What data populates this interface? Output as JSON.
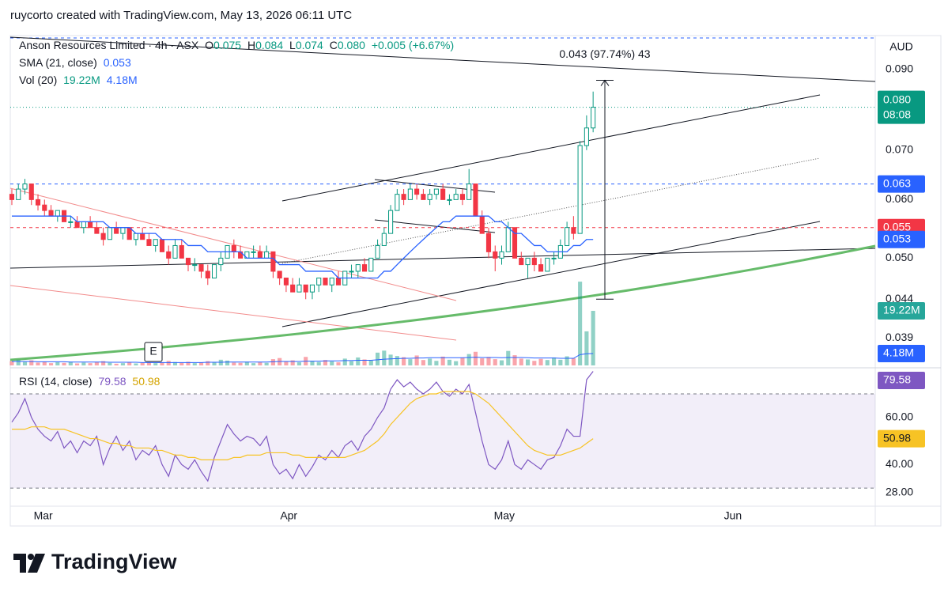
{
  "header": {
    "credit": "ruycorto created with TradingView.com, May 13, 2026 06:11 UTC"
  },
  "footer": {
    "brand": "TradingView"
  },
  "chart_data": {
    "type": "candlestick",
    "title": "Anson Resources Limited · 4h · ASX",
    "legend": [
      {
        "key": "O",
        "value": "0.075"
      },
      {
        "key": "H",
        "value": "0.084"
      },
      {
        "key": "L",
        "value": "0.074"
      },
      {
        "key": "C",
        "value": "0.080"
      }
    ],
    "change": "+0.005 (+6.67%)",
    "currency": "AUD",
    "up_color": "#089981",
    "down_color": "#f23645",
    "log_scale": true,
    "xlim": [
      -0.24,
      132.2
    ],
    "xticks": [
      {
        "value": 4.8,
        "label": "Mar"
      },
      {
        "value": 42.4,
        "label": "Apr"
      },
      {
        "value": 75.4,
        "label": "May"
      },
      {
        "value": 110.4,
        "label": "Jun"
      }
    ],
    "ylim": [
      0.0358,
      0.1
    ],
    "yticks": [
      {
        "value": 0.09,
        "label": "0.090"
      },
      {
        "value": 0.07,
        "label": "0.070"
      },
      {
        "value": 0.06,
        "label": "0.060"
      },
      {
        "value": 0.05,
        "label": "0.050"
      },
      {
        "value": 0.044,
        "label": "0.044"
      },
      {
        "value": 0.039,
        "label": "0.039"
      }
    ],
    "price_tags": [
      {
        "value": 0.08,
        "label": "0.080",
        "time": "08:08",
        "color": "#089981"
      },
      {
        "value": 0.063,
        "label": "0.063",
        "color": "#2962ff"
      },
      {
        "value": 0.055,
        "label": "0.055",
        "color": "#f23645"
      }
    ],
    "measure": {
      "from": 0.044,
      "to": 0.087,
      "label": "0.043 (97.74%) 43"
    },
    "earnings_marker": "E",
    "open": [
      0.061,
      0.06,
      0.062,
      0.063,
      0.06,
      0.059,
      0.058,
      0.057,
      0.058,
      0.056,
      0.056,
      0.055,
      0.056,
      0.055,
      0.054,
      0.053,
      0.055,
      0.054,
      0.055,
      0.053,
      0.054,
      0.053,
      0.052,
      0.053,
      0.051,
      0.05,
      0.052,
      0.05,
      0.049,
      0.049,
      0.048,
      0.047,
      0.049,
      0.05,
      0.052,
      0.051,
      0.05,
      0.051,
      0.051,
      0.05,
      0.051,
      0.048,
      0.047,
      0.046,
      0.045,
      0.046,
      0.045,
      0.046,
      0.047,
      0.046,
      0.047,
      0.046,
      0.048,
      0.048,
      0.049,
      0.048,
      0.05,
      0.052,
      0.054,
      0.058,
      0.061,
      0.06,
      0.062,
      0.061,
      0.06,
      0.061,
      0.062,
      0.06,
      0.06,
      0.061,
      0.06,
      0.063,
      0.057,
      0.054,
      0.051,
      0.05,
      0.051,
      0.055,
      0.05,
      0.049,
      0.05,
      0.049,
      0.048,
      0.05,
      0.05,
      0.052,
      0.055,
      0.054,
      0.071,
      0.075
    ],
    "high": [
      0.062,
      0.063,
      0.064,
      0.063,
      0.061,
      0.06,
      0.059,
      0.058,
      0.058,
      0.057,
      0.057,
      0.056,
      0.057,
      0.056,
      0.055,
      0.055,
      0.056,
      0.055,
      0.055,
      0.054,
      0.055,
      0.054,
      0.053,
      0.053,
      0.052,
      0.053,
      0.053,
      0.05,
      0.05,
      0.049,
      0.049,
      0.049,
      0.051,
      0.052,
      0.053,
      0.052,
      0.051,
      0.052,
      0.052,
      0.052,
      0.051,
      0.048,
      0.047,
      0.047,
      0.047,
      0.046,
      0.046,
      0.047,
      0.047,
      0.047,
      0.048,
      0.048,
      0.049,
      0.049,
      0.05,
      0.05,
      0.053,
      0.055,
      0.059,
      0.062,
      0.062,
      0.063,
      0.063,
      0.062,
      0.062,
      0.062,
      0.063,
      0.061,
      0.062,
      0.062,
      0.066,
      0.063,
      0.058,
      0.055,
      0.052,
      0.052,
      0.056,
      0.055,
      0.051,
      0.05,
      0.051,
      0.05,
      0.05,
      0.051,
      0.053,
      0.056,
      0.057,
      0.072,
      0.078,
      0.084
    ],
    "low": [
      0.059,
      0.06,
      0.061,
      0.059,
      0.058,
      0.057,
      0.057,
      0.056,
      0.056,
      0.055,
      0.055,
      0.054,
      0.055,
      0.054,
      0.052,
      0.053,
      0.054,
      0.053,
      0.053,
      0.052,
      0.053,
      0.052,
      0.051,
      0.051,
      0.049,
      0.05,
      0.05,
      0.048,
      0.048,
      0.047,
      0.046,
      0.047,
      0.048,
      0.05,
      0.05,
      0.05,
      0.05,
      0.05,
      0.05,
      0.05,
      0.047,
      0.046,
      0.045,
      0.045,
      0.045,
      0.044,
      0.044,
      0.045,
      0.046,
      0.045,
      0.046,
      0.046,
      0.047,
      0.047,
      0.048,
      0.048,
      0.05,
      0.052,
      0.054,
      0.058,
      0.059,
      0.06,
      0.06,
      0.06,
      0.059,
      0.06,
      0.06,
      0.059,
      0.06,
      0.059,
      0.06,
      0.057,
      0.054,
      0.05,
      0.048,
      0.049,
      0.051,
      0.05,
      0.049,
      0.047,
      0.048,
      0.048,
      0.048,
      0.049,
      0.05,
      0.052,
      0.053,
      0.054,
      0.07,
      0.074
    ],
    "close": [
      0.06,
      0.062,
      0.063,
      0.06,
      0.059,
      0.058,
      0.057,
      0.058,
      0.056,
      0.056,
      0.055,
      0.056,
      0.055,
      0.054,
      0.053,
      0.055,
      0.054,
      0.055,
      0.053,
      0.054,
      0.053,
      0.052,
      0.053,
      0.051,
      0.05,
      0.052,
      0.05,
      0.049,
      0.049,
      0.048,
      0.047,
      0.049,
      0.05,
      0.052,
      0.051,
      0.05,
      0.051,
      0.051,
      0.05,
      0.051,
      0.048,
      0.047,
      0.046,
      0.045,
      0.046,
      0.045,
      0.046,
      0.047,
      0.046,
      0.047,
      0.046,
      0.048,
      0.048,
      0.049,
      0.048,
      0.05,
      0.052,
      0.054,
      0.058,
      0.061,
      0.06,
      0.062,
      0.061,
      0.06,
      0.061,
      0.062,
      0.06,
      0.06,
      0.061,
      0.06,
      0.063,
      0.057,
      0.054,
      0.051,
      0.05,
      0.051,
      0.055,
      0.05,
      0.049,
      0.05,
      0.049,
      0.048,
      0.05,
      0.05,
      0.052,
      0.055,
      0.054,
      0.071,
      0.075,
      0.08
    ],
    "sma": {
      "name": "SMA (21, close)",
      "legend_value": "0.053",
      "color": "#2962ff",
      "values": [
        0.057,
        0.057,
        0.057,
        0.057,
        0.057,
        0.057,
        0.057,
        0.057,
        0.057,
        0.057,
        0.056,
        0.056,
        0.056,
        0.056,
        0.056,
        0.055,
        0.055,
        0.055,
        0.055,
        0.054,
        0.054,
        0.054,
        0.054,
        0.053,
        0.053,
        0.053,
        0.053,
        0.052,
        0.052,
        0.052,
        0.051,
        0.051,
        0.051,
        0.051,
        0.051,
        0.051,
        0.05,
        0.05,
        0.05,
        0.05,
        0.05,
        0.049,
        0.049,
        0.049,
        0.049,
        0.048,
        0.048,
        0.048,
        0.048,
        0.048,
        0.047,
        0.047,
        0.047,
        0.047,
        0.047,
        0.047,
        0.047,
        0.048,
        0.048,
        0.049,
        0.05,
        0.051,
        0.052,
        0.053,
        0.054,
        0.055,
        0.056,
        0.056,
        0.057,
        0.057,
        0.057,
        0.057,
        0.057,
        0.057,
        0.056,
        0.056,
        0.055,
        0.054,
        0.054,
        0.053,
        0.052,
        0.052,
        0.051,
        0.051,
        0.051,
        0.051,
        0.052,
        0.052,
        0.053,
        0.053
      ],
      "tag_label": "0.053"
    },
    "volume": {
      "name": "Vol (20)",
      "legend_values": [
        "19.22M",
        "4.18M"
      ],
      "ma_color": "#2962ff",
      "values": [
        1.5,
        2.0,
        1.2,
        1.8,
        1.0,
        1.4,
        0.8,
        1.1,
        0.9,
        1.3,
        0.7,
        1.0,
        0.8,
        1.2,
        1.5,
        0.9,
        0.6,
        0.8,
        1.0,
        0.7,
        0.9,
        1.1,
        0.8,
        1.0,
        1.6,
        1.2,
        0.9,
        1.3,
        0.8,
        1.0,
        1.5,
        1.1,
        2.0,
        1.7,
        1.0,
        0.9,
        1.3,
        0.8,
        1.1,
        0.9,
        2.2,
        2.6,
        1.4,
        1.8,
        1.1,
        3.0,
        1.6,
        1.2,
        1.9,
        1.4,
        1.1,
        2.4,
        1.5,
        2.8,
        2.1,
        1.7,
        4.5,
        5.2,
        3.8,
        3.3,
        2.9,
        2.2,
        3.5,
        1.9,
        2.4,
        1.6,
        3.1,
        2.0,
        1.5,
        2.7,
        4.0,
        4.8,
        2.5,
        3.0,
        2.2,
        1.8,
        5.1,
        3.6,
        2.4,
        2.1,
        1.6,
        2.3,
        1.9,
        2.8,
        2.0,
        3.2,
        2.5,
        29.5,
        12.0,
        19.22
      ],
      "ma_values": [
        1.4,
        1.4,
        1.4,
        1.4,
        1.3,
        1.3,
        1.3,
        1.3,
        1.3,
        1.2,
        1.2,
        1.2,
        1.2,
        1.2,
        1.2,
        1.1,
        1.1,
        1.1,
        1.1,
        1.1,
        1.0,
        1.0,
        1.0,
        1.0,
        1.0,
        1.0,
        1.0,
        1.0,
        1.0,
        1.0,
        1.1,
        1.1,
        1.1,
        1.2,
        1.2,
        1.2,
        1.2,
        1.2,
        1.2,
        1.2,
        1.3,
        1.4,
        1.4,
        1.4,
        1.4,
        1.5,
        1.5,
        1.5,
        1.6,
        1.6,
        1.6,
        1.7,
        1.7,
        1.8,
        1.8,
        1.8,
        2.0,
        2.2,
        2.3,
        2.4,
        2.5,
        2.5,
        2.6,
        2.6,
        2.7,
        2.7,
        2.7,
        2.7,
        2.7,
        2.7,
        2.8,
        2.9,
        2.8,
        2.8,
        2.8,
        2.7,
        2.8,
        2.8,
        2.8,
        2.7,
        2.6,
        2.6,
        2.6,
        2.6,
        2.5,
        2.5,
        2.5,
        3.8,
        4.1,
        4.18
      ]
    },
    "rsi": {
      "name": "RSI (14, close)",
      "legend_values": [
        "79.58",
        "50.98"
      ],
      "color": "#7e57c2",
      "ma_color": "#f7c325",
      "ylim": [
        22.3,
        79.4
      ],
      "bands": [
        30,
        70
      ],
      "yticks": [
        {
          "value": 60,
          "label": "60.00"
        },
        {
          "value": 40,
          "label": "40.00"
        },
        {
          "value": 28,
          "label": "28.00"
        }
      ],
      "values": [
        58,
        62,
        68,
        60,
        55,
        52,
        50,
        54,
        47,
        50,
        45,
        50,
        48,
        52,
        40,
        47,
        52,
        46,
        50,
        42,
        46,
        44,
        48,
        40,
        35,
        44,
        40,
        38,
        42,
        37,
        33,
        43,
        50,
        57,
        53,
        50,
        52,
        51,
        48,
        52,
        40,
        36,
        38,
        34,
        40,
        35,
        39,
        44,
        42,
        46,
        43,
        48,
        50,
        46,
        52,
        55,
        60,
        64,
        72,
        76,
        73,
        75,
        72,
        70,
        72,
        75,
        71,
        69,
        72,
        70,
        74,
        62,
        50,
        40,
        38,
        42,
        50,
        40,
        38,
        42,
        40,
        38,
        42,
        43,
        48,
        55,
        52,
        52,
        76,
        79.58
      ],
      "ma_values": [
        55,
        55,
        55,
        56,
        56,
        56,
        55,
        55,
        55,
        54,
        53,
        52,
        51,
        51,
        50,
        49,
        49,
        48,
        48,
        47,
        47,
        47,
        46,
        46,
        45,
        44,
        44,
        43,
        43,
        42,
        42,
        42,
        42,
        42,
        43,
        43,
        44,
        44,
        44,
        45,
        45,
        45,
        45,
        44,
        44,
        43,
        43,
        43,
        43,
        43,
        43,
        43,
        44,
        45,
        46,
        48,
        50,
        53,
        57,
        60,
        63,
        66,
        68,
        69,
        70,
        70,
        71,
        71,
        71,
        71,
        71,
        70,
        68,
        66,
        63,
        60,
        57,
        54,
        51,
        48,
        46,
        45,
        44,
        44,
        44,
        45,
        46,
        47,
        49,
        50.98
      ]
    }
  }
}
